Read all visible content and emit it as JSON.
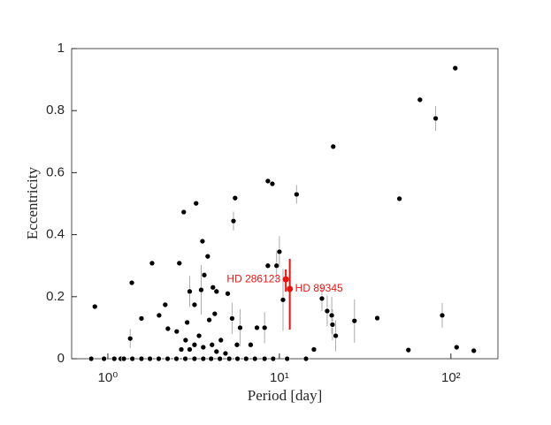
{
  "chart_data": {
    "type": "scatter",
    "x_label": "Period [day]",
    "y_label": "Eccentricity",
    "xscale": "log",
    "xlim": [
      0.615,
      188
    ],
    "ylim": [
      0,
      1
    ],
    "xticks": [
      {
        "value": 1,
        "label": "10⁰"
      },
      {
        "value": 10,
        "label": "10¹"
      },
      {
        "value": 100,
        "label": "10²"
      }
    ],
    "yticks": [
      0,
      0.2,
      0.4,
      0.6,
      0.8,
      1
    ],
    "series": [
      {
        "color": "#000000",
        "error_color": "#aaaaaa",
        "x": [
          0.8,
          0.95,
          1.09,
          1.19,
          0.84,
          1.35,
          1.38,
          1.81,
          1.99,
          2.16,
          2.61,
          2.77,
          3.27,
          3.56,
          3.82,
          5.4,
          5.52,
          8.57,
          9.1,
          10,
          10.5,
          12.6,
          20.6,
          50.1,
          66.0,
          81.5,
          106,
          89,
          108,
          136,
          56.5,
          37.2,
          27.4,
          17.7,
          19.0,
          20.2,
          20.4,
          21.3,
          15.9,
          14.3,
          11.1,
          8.57,
          9.63,
          8.2,
          7.4,
          6.8,
          5.9,
          5.3,
          5.0,
          3.0,
          3.2,
          3.5,
          4.1,
          4.3,
          3.65,
          4.2,
          3.9,
          3.4,
          2.84,
          2.68,
          3.0,
          3.2,
          3.6,
          4.05,
          4.56,
          4.3,
          4.85,
          5.66,
          2.9,
          2.52,
          2.24,
          1.57,
          1.24,
          1.39,
          1.57,
          1.76,
          1.98,
          2.23,
          2.51,
          2.83,
          3.2,
          3.6,
          4.0,
          4.5,
          5.1,
          5.7,
          6.4,
          7.2,
          8.2,
          9.2
        ],
        "values": [
          0,
          0,
          0,
          0,
          0.168,
          0.065,
          0.245,
          0.308,
          0.14,
          0.174,
          0.308,
          0.473,
          0.501,
          0.379,
          0.33,
          0.444,
          0.518,
          0.573,
          0.564,
          0.345,
          0.19,
          0.53,
          0.684,
          0.516,
          0.835,
          0.775,
          0.937,
          0.14,
          0.037,
          0.026,
          0.028,
          0.131,
          0.122,
          0.194,
          0.154,
          0.14,
          0.11,
          0.074,
          0.03,
          0,
          0,
          0.3,
          0.3,
          0.1,
          0.1,
          0.045,
          0.1,
          0.13,
          0.21,
          0.217,
          0.174,
          0.222,
          0.23,
          0.217,
          0.27,
          0.145,
          0.125,
          0.074,
          0.06,
          0.03,
          0.03,
          0.045,
          0.037,
          0.045,
          0.06,
          0.023,
          0.017,
          0.045,
          0.117,
          0.088,
          0.097,
          0.13,
          0,
          0,
          0,
          0,
          0,
          0,
          0,
          0,
          0,
          0,
          0,
          0,
          0,
          0,
          0,
          0,
          0,
          0
        ],
        "errors": [
          null,
          null,
          null,
          null,
          null,
          0.03,
          null,
          null,
          null,
          null,
          null,
          null,
          null,
          null,
          null,
          0.03,
          null,
          null,
          null,
          0.05,
          0.1,
          0.03,
          null,
          null,
          null,
          0.04,
          null,
          0.04,
          null,
          null,
          null,
          null,
          0.07,
          0.04,
          0.05,
          0.06,
          0.05,
          0.05,
          null,
          null,
          null,
          null,
          0.05,
          0.05,
          null,
          null,
          0.06,
          0.05,
          null,
          0.05,
          null,
          0.08,
          null,
          null,
          null,
          null,
          null,
          null,
          null,
          null,
          null,
          null,
          null,
          null,
          null,
          null,
          null,
          null,
          null,
          null,
          null,
          null,
          null,
          null,
          null,
          null,
          null,
          null,
          null,
          null,
          null,
          null,
          null,
          null,
          null,
          null,
          null,
          null,
          null,
          null
        ]
      }
    ],
    "highlights": [
      {
        "label": "HD 286123",
        "x": 10.9,
        "y": 0.256,
        "err_low": 0.04,
        "err_high": 0.032,
        "color": "#e8140f",
        "side": "left"
      },
      {
        "label": "HD 89345",
        "x": 11.5,
        "y": 0.225,
        "err_low": 0.131,
        "err_high": 0.097,
        "color": "#e8140f",
        "side": "right"
      }
    ]
  }
}
